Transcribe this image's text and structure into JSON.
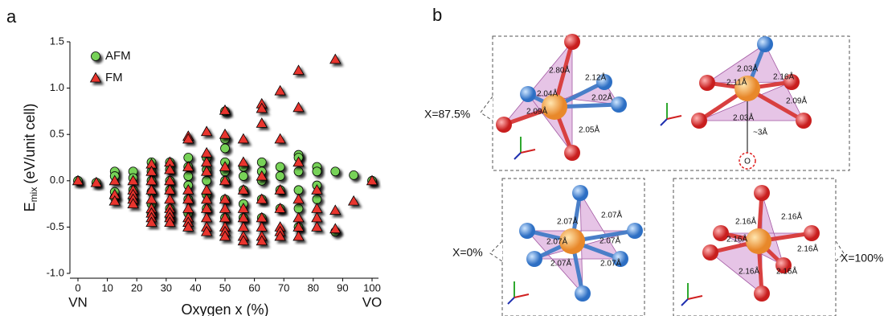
{
  "chart_data": {
    "type": "scatter",
    "panel_label": "a",
    "xlabel": "Oxygen x (%)",
    "ylabel_main": "E",
    "ylabel_sub": "mix",
    "ylabel_rest": "(eV/unit cell)",
    "annotations": [
      "VN",
      "VO"
    ],
    "xlim": [
      0,
      100
    ],
    "xticks": [
      0,
      10,
      20,
      30,
      40,
      50,
      60,
      70,
      80,
      90,
      100
    ],
    "ylim": [
      -1.0,
      1.5
    ],
    "yticks": [
      {
        "value": -1.0,
        "label": "-1.0"
      },
      -0.5,
      {
        "value": 0,
        "label": "0.0"
      },
      0.5,
      {
        "value": 1.0,
        "label": "1.0"
      },
      1.5
    ],
    "legend": "upper left",
    "grid": false,
    "series": [
      {
        "name": "AFM",
        "color": "#77d259",
        "marker": "circle",
        "x": [
          0,
          6.25,
          12.5,
          12.5,
          12.5,
          12.5,
          18.75,
          18.75,
          18.75,
          18.75,
          25,
          25,
          25,
          25,
          25,
          25,
          31.25,
          31.25,
          31.25,
          31.25,
          31.25,
          31.25,
          37.5,
          37.5,
          37.5,
          37.5,
          37.5,
          37.5,
          43.75,
          43.75,
          43.75,
          43.75,
          43.75,
          50,
          50,
          50,
          50,
          50,
          50,
          50,
          50,
          56.25,
          56.25,
          56.25,
          56.25,
          56.25,
          62.5,
          62.5,
          62.5,
          62.5,
          62.5,
          68.75,
          68.75,
          68.75,
          68.75,
          75,
          75,
          75,
          75,
          75,
          75,
          81.25,
          81.25,
          81.25,
          81.25,
          87.5,
          87.5,
          93.75,
          100
        ],
        "values": [
          0,
          -0.02,
          0.1,
          0.05,
          -0.12,
          -0.18,
          0.1,
          0.03,
          -0.1,
          -0.2,
          0.2,
          0.1,
          0,
          -0.12,
          -0.25,
          -0.35,
          0.2,
          0.12,
          0,
          -0.1,
          -0.3,
          -0.4,
          0.25,
          0.15,
          0.05,
          -0.05,
          -0.2,
          -0.35,
          0.25,
          0.12,
          0,
          -0.15,
          -0.3,
          0.75,
          0.45,
          0.35,
          0.2,
          0.1,
          0,
          -0.2,
          -0.4,
          0.15,
          0.05,
          -0.1,
          -0.25,
          -0.4,
          0.2,
          0.1,
          0,
          -0.2,
          -0.4,
          0.15,
          0.05,
          -0.1,
          -0.3,
          0.28,
          0.25,
          0.1,
          -0.1,
          -0.3,
          -0.5,
          0.15,
          0.1,
          -0.05,
          -0.2,
          0.1,
          -0.55,
          0.06,
          0
        ]
      },
      {
        "name": "FM",
        "color": "#e8342d",
        "marker": "triangle",
        "x": [
          0,
          6.25,
          12.5,
          12.5,
          12.5,
          18.75,
          18.75,
          18.75,
          18.75,
          18.75,
          25,
          25,
          25,
          25,
          25,
          25,
          25,
          25,
          25,
          31.25,
          31.25,
          31.25,
          31.25,
          31.25,
          31.25,
          31.25,
          31.25,
          31.25,
          37.5,
          37.5,
          37.5,
          37.5,
          37.5,
          37.5,
          37.5,
          37.5,
          37.5,
          43.75,
          43.75,
          43.75,
          43.75,
          43.75,
          43.75,
          43.75,
          43.75,
          43.75,
          43.75,
          50,
          50,
          50,
          50,
          50,
          50,
          50,
          50,
          50,
          50,
          56.25,
          56.25,
          56.25,
          56.25,
          56.25,
          56.25,
          56.25,
          56.25,
          62.5,
          62.5,
          62.5,
          62.5,
          62.5,
          62.5,
          62.5,
          62.5,
          62.5,
          68.75,
          68.75,
          68.75,
          68.75,
          68.75,
          68.75,
          68.75,
          75,
          75,
          75,
          75,
          75,
          75,
          75,
          81.25,
          81.25,
          81.25,
          81.25,
          87.5,
          87.5,
          87.5,
          93.75,
          100
        ],
        "values": [
          0,
          -0.02,
          0,
          -0.15,
          -0.22,
          0,
          -0.1,
          -0.15,
          -0.2,
          -0.25,
          0.18,
          0.1,
          0,
          -0.1,
          -0.2,
          -0.3,
          -0.35,
          -0.4,
          -0.45,
          0.2,
          0.12,
          0,
          -0.1,
          -0.2,
          -0.3,
          -0.35,
          -0.4,
          -0.45,
          0.48,
          0.45,
          0.15,
          -0.1,
          -0.2,
          -0.3,
          -0.4,
          -0.45,
          -0.5,
          0.53,
          0.3,
          0.2,
          0.1,
          -0.1,
          -0.2,
          -0.3,
          -0.4,
          -0.5,
          -0.55,
          0.76,
          0.5,
          0.15,
          0,
          -0.2,
          -0.3,
          -0.4,
          -0.5,
          -0.55,
          -0.6,
          0.45,
          0.2,
          -0.1,
          -0.3,
          -0.4,
          -0.5,
          -0.6,
          -0.65,
          0.83,
          0.78,
          0.62,
          0.05,
          -0.2,
          -0.4,
          -0.5,
          -0.6,
          -0.65,
          0.97,
          0.45,
          -0.1,
          -0.3,
          -0.5,
          -0.55,
          -0.6,
          1.19,
          0.79,
          0.2,
          -0.2,
          -0.4,
          -0.5,
          -0.6,
          -0.1,
          -0.3,
          -0.4,
          -0.5,
          1.31,
          -0.32,
          -0.52,
          -0.22,
          0
        ]
      }
    ]
  },
  "panel_b": {
    "label": "b",
    "structures": [
      {
        "caption": "X=87.5%",
        "bonds": [
          "2.80Å",
          "2.12Å",
          "2.04Å",
          "2.02Å",
          "2.09Å",
          "2.05Å"
        ]
      },
      {
        "bonds": [
          "2.03Å",
          "2.11Å",
          "2.16Å",
          "2.09Å",
          "2.03Å"
        ],
        "annotations": [
          "~3Å",
          "O"
        ]
      },
      {
        "caption": "X=0%",
        "bonds": [
          "2.07Å",
          "2.07Å",
          "2.07Å",
          "2.07Å",
          "2.07Å",
          "2.07Å"
        ]
      },
      {
        "caption": "X=100%",
        "bonds": [
          "2.16Å",
          "2.16Å",
          "2.16Å",
          "2.16Å",
          "2.16Å",
          "2.16Å"
        ]
      }
    ]
  }
}
